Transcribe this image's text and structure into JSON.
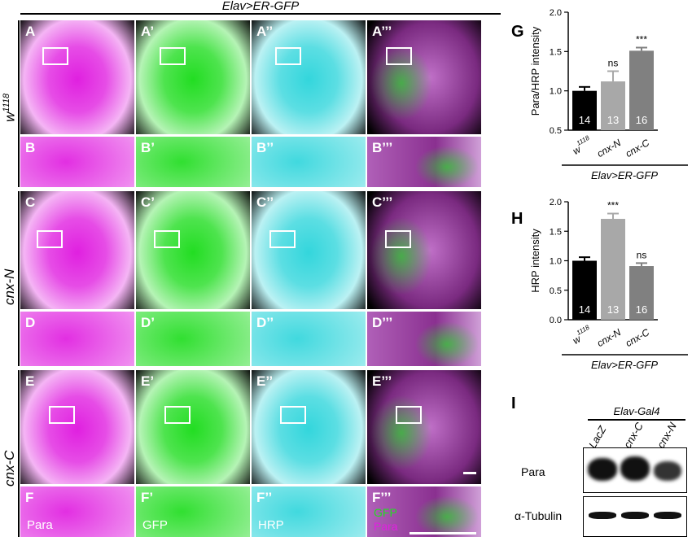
{
  "header": {
    "title": "Elav>ER-GFP"
  },
  "rows": [
    {
      "label": "w",
      "label_sup": "1118",
      "panel_letter": "A",
      "detail_letter": "B"
    },
    {
      "label": "cnx-N",
      "label_sup": "",
      "panel_letter": "C",
      "detail_letter": "D"
    },
    {
      "label": "cnx-C",
      "label_sup": "",
      "panel_letter": "E",
      "detail_letter": "F"
    }
  ],
  "primes": [
    "",
    "’",
    "’’",
    "’’’"
  ],
  "channels": [
    "Para",
    "GFP",
    "HRP",
    "GFP",
    "Para"
  ],
  "colors": {
    "para": "#e020e0",
    "gfp": "#22dd22",
    "hrp": "#33d6dc",
    "bar_black": "#000000",
    "bar_light_gray": "#a8a8a8",
    "bar_mid_gray": "#808080"
  },
  "figure_letters": {
    "g": "G",
    "h": "H",
    "i": "I"
  },
  "chart_data": [
    {
      "type": "bar",
      "ylabel": "Para/HRP intensity",
      "ylim": [
        0.5,
        2.0
      ],
      "yticks": [
        "0.5",
        "1.0",
        "1.5",
        "2.0"
      ],
      "categories": [
        "w1118",
        "cnx-N",
        "cnx-C"
      ],
      "category_base": [
        "w",
        "cnx-N",
        "cnx-C"
      ],
      "category_sup": [
        "1118",
        "",
        ""
      ],
      "values": [
        1.0,
        1.12,
        1.51
      ],
      "errors": [
        0.05,
        0.13,
        0.04
      ],
      "n": [
        "14",
        "13",
        "16"
      ],
      "significance": [
        "",
        "ns",
        "***"
      ],
      "group_label": "Elav>ER-GFP"
    },
    {
      "type": "bar",
      "ylabel": "HRP intensity",
      "ylim": [
        0.0,
        2.0
      ],
      "yticks": [
        "0.0",
        "0.5",
        "1.0",
        "1.5",
        "2.0"
      ],
      "categories": [
        "w1118",
        "cnx-N",
        "cnx-C"
      ],
      "category_base": [
        "w",
        "cnx-N",
        "cnx-C"
      ],
      "category_sup": [
        "1118",
        "",
        ""
      ],
      "values": [
        1.0,
        1.71,
        0.91
      ],
      "errors": [
        0.06,
        0.09,
        0.05
      ],
      "n": [
        "14",
        "13",
        "16"
      ],
      "significance": [
        "",
        "***",
        "ns"
      ],
      "group_label": "Elav>ER-GFP"
    }
  ],
  "western": {
    "header": "Elav-Gal4",
    "lanes": [
      "LacZ",
      "cnx-C",
      "cnx-N"
    ],
    "rows": [
      "Para",
      "α-Tubulin"
    ]
  }
}
